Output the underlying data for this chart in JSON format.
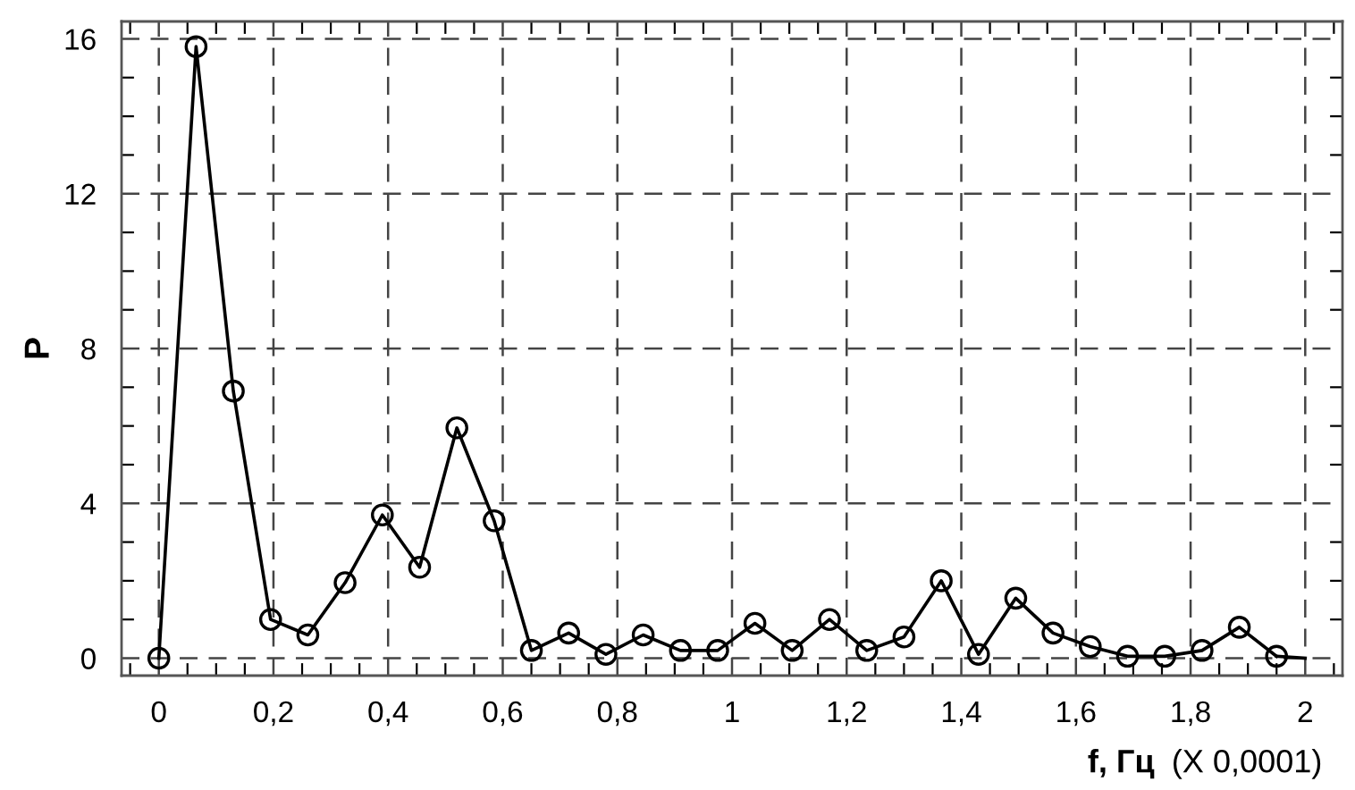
{
  "chart_data": {
    "type": "line",
    "xlabel": "f, Гц",
    "ylabel": "P",
    "annotations": [
      "(X 0,0001)"
    ],
    "series": [
      {
        "color": "#000000",
        "x": [
          0,
          0.065,
          0.13,
          0.195,
          0.26,
          0.325,
          0.39,
          0.455,
          0.52,
          0.585,
          0.65,
          0.715,
          0.78,
          0.845,
          0.91,
          0.975,
          1.04,
          1.105,
          1.17,
          1.235,
          1.3,
          1.365,
          1.43,
          1.495,
          1.56,
          1.625,
          1.69,
          1.755,
          1.82,
          1.885,
          1.95
        ],
        "values": [
          0,
          15.8,
          6.9,
          1.0,
          0.6,
          1.95,
          3.7,
          2.35,
          5.95,
          3.55,
          0.2,
          0.65,
          0.1,
          0.6,
          0.2,
          0.2,
          0.9,
          0.2,
          1.0,
          0.2,
          0.55,
          2.0,
          0.1,
          1.55,
          0.65,
          0.3,
          0.05,
          0.05,
          0.2,
          0.8,
          0.05
        ]
      },
      {
        "type": "line",
        "color": "#000000",
        "marker": "none",
        "x": [
          1.95,
          2.0
        ],
        "values": [
          0.05,
          0
        ]
      }
    ],
    "marker": "circle",
    "line_style": "solid",
    "grid": true,
    "xlim": [
      -0.065,
      2.065
    ],
    "ylim": [
      -0.45,
      16.45
    ],
    "xticks": [
      0,
      {
        "value": 0.2,
        "label": "0,2"
      },
      {
        "value": 0.4,
        "label": "0,4"
      },
      {
        "value": 0.6,
        "label": "0,6"
      },
      {
        "value": 0.8,
        "label": "0,8"
      },
      1,
      {
        "value": 1.2,
        "label": "1,2"
      },
      {
        "value": 1.4,
        "label": "1,4"
      },
      {
        "value": 1.6,
        "label": "1,6"
      },
      {
        "value": 1.8,
        "label": "1,8"
      },
      2
    ],
    "yticks": [
      0,
      4,
      8,
      12,
      16
    ]
  }
}
